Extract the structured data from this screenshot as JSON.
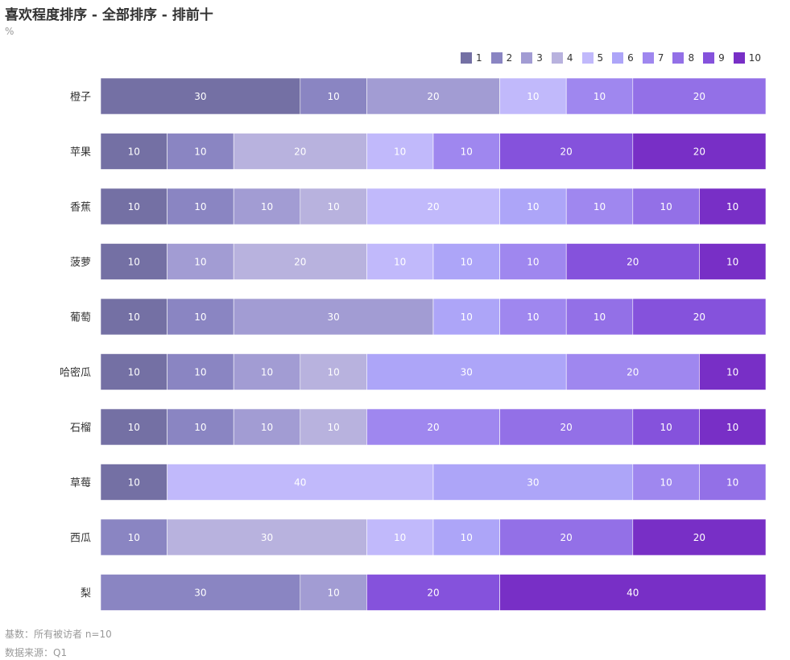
{
  "header": {
    "title": "喜欢程度排序 - 全部排序 - 排前十",
    "unit": "%"
  },
  "footer": {
    "base": "基数：所有被访者 n=10",
    "source": "数据来源：Q1"
  },
  "colors": [
    "#7470a4",
    "#8a85c2",
    "#a29cd3",
    "#b8b2de",
    "#c1b9fb",
    "#ada5f8",
    "#9f87ef",
    "#9370e7",
    "#8552dc",
    "#782fc6"
  ],
  "chart_data": {
    "type": "bar",
    "orientation": "horizontal",
    "stacked": "percent",
    "title": "喜欢程度排序 - 全部排序 - 排前十",
    "ylabel": "%",
    "xlim": [
      0,
      100
    ],
    "legend_position": "top-right",
    "categories": [
      "橙子",
      "苹果",
      "香蕉",
      "菠萝",
      "葡萄",
      "哈密瓜",
      "石榴",
      "草莓",
      "西瓜",
      "梨"
    ],
    "series": [
      {
        "name": "1",
        "values": [
          30,
          10,
          10,
          10,
          10,
          10,
          10,
          10,
          0,
          0
        ]
      },
      {
        "name": "2",
        "values": [
          10,
          10,
          10,
          0,
          10,
          10,
          10,
          0,
          10,
          30
        ]
      },
      {
        "name": "3",
        "values": [
          20,
          0,
          10,
          10,
          30,
          10,
          10,
          0,
          0,
          10
        ]
      },
      {
        "name": "4",
        "values": [
          0,
          20,
          10,
          20,
          0,
          10,
          10,
          0,
          30,
          0
        ]
      },
      {
        "name": "5",
        "values": [
          10,
          10,
          20,
          10,
          0,
          0,
          0,
          40,
          10,
          0
        ]
      },
      {
        "name": "6",
        "values": [
          0,
          0,
          10,
          10,
          10,
          30,
          0,
          30,
          10,
          0
        ]
      },
      {
        "name": "7",
        "values": [
          10,
          10,
          10,
          10,
          10,
          20,
          20,
          10,
          0,
          0
        ]
      },
      {
        "name": "8",
        "values": [
          20,
          0,
          10,
          0,
          10,
          0,
          20,
          10,
          20,
          0
        ]
      },
      {
        "name": "9",
        "values": [
          0,
          20,
          0,
          20,
          20,
          0,
          10,
          0,
          0,
          20
        ]
      },
      {
        "name": "10",
        "values": [
          0,
          20,
          10,
          10,
          0,
          10,
          10,
          0,
          20,
          40
        ]
      }
    ]
  }
}
